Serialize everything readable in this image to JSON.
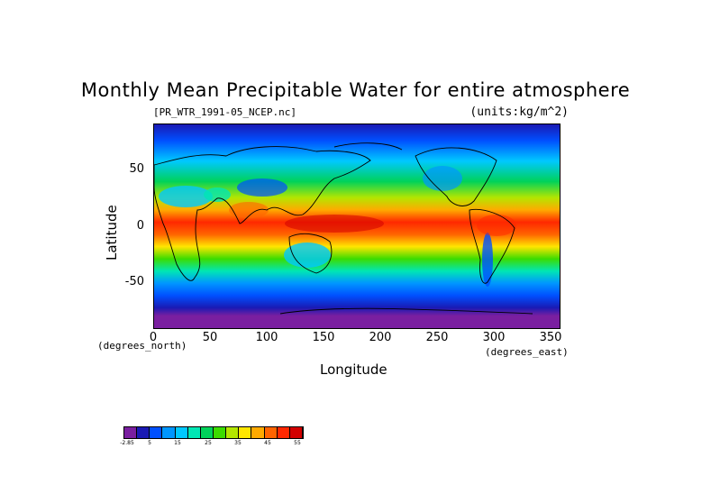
{
  "title": "Monthly Mean Precipitable Water for entire atmosphere",
  "file_label": "[PR_WTR_1991-05_NCEP.nc]",
  "units_label": "(units:kg/m^2)",
  "axes": {
    "x_title": "Longitude",
    "y_title": "Latitude",
    "x_unit": "(degrees_east)",
    "y_unit": "(degrees_north)",
    "x_ticks": [
      "0",
      "50",
      "100",
      "150",
      "200",
      "250",
      "300",
      "350"
    ],
    "y_ticks": [
      "50",
      "0",
      "-50"
    ]
  },
  "colorbar": {
    "colors": [
      "#7a1fa0",
      "#1a1ab4",
      "#0050ff",
      "#0096ff",
      "#00c8ff",
      "#00e6b4",
      "#00d25a",
      "#3cdc00",
      "#b4e600",
      "#ffe600",
      "#ffaa00",
      "#ff6400",
      "#ff2800",
      "#d20000"
    ],
    "labels": [
      "-2.85",
      "5",
      "15",
      "25",
      "35",
      "45",
      "55"
    ]
  },
  "chart_data": {
    "type": "heatmap",
    "title": "Monthly Mean Precipitable Water for entire atmosphere",
    "subtitle": "[PR_WTR_1991-05_NCEP.nc]",
    "units": "(units:kg/m^2)",
    "xlabel": "Longitude",
    "ylabel": "Latitude",
    "xlim": [
      0,
      357.5
    ],
    "ylim": [
      -90,
      90
    ],
    "x_ticks": [
      0,
      50,
      100,
      150,
      200,
      250,
      300,
      350
    ],
    "y_ticks": [
      50,
      0,
      -50
    ],
    "colorbar_range": [
      -2.85,
      58
    ],
    "zonal_profile": {
      "lat": [
        80,
        60,
        40,
        20,
        10,
        0,
        -10,
        -20,
        -40,
        -60,
        -80
      ],
      "value": [
        6,
        12,
        22,
        38,
        48,
        52,
        45,
        32,
        15,
        7,
        2
      ]
    }
  }
}
